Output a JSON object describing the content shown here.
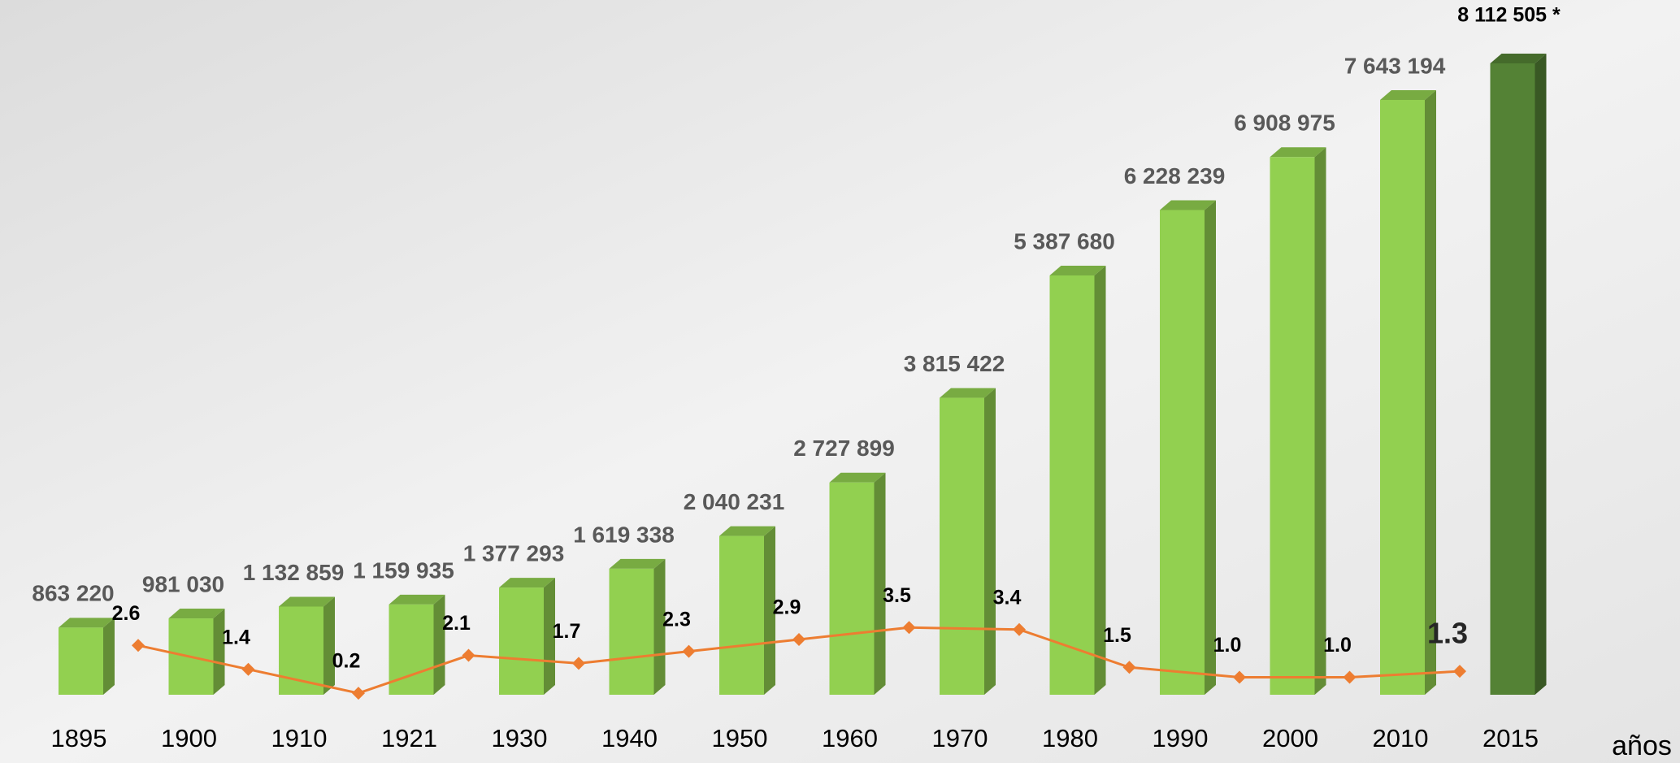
{
  "chart_data": {
    "type": "bar",
    "categories": [
      "1895",
      "1900",
      "1910",
      "1921",
      "1930",
      "1940",
      "1950",
      "1960",
      "1970",
      "1980",
      "1990",
      "2000",
      "2010",
      "2015"
    ],
    "values": [
      863220,
      981030,
      1132859,
      1159935,
      1377293,
      1619338,
      2040231,
      2727899,
      3815422,
      5387680,
      6228239,
      6908975,
      7643194,
      8112505
    ],
    "value_labels": [
      "863 220",
      "981 030",
      "1 132 859",
      "1 159 935",
      "1 377 293",
      "1 619 338",
      "2 040 231",
      "2 727 899",
      "3 815 422",
      "5 387 680",
      "6 228 239",
      "6 908 975",
      "7 643 194",
      "8 112 505 *"
    ],
    "colors": [
      "#92d050",
      "#92d050",
      "#92d050",
      "#92d050",
      "#92d050",
      "#92d050",
      "#92d050",
      "#92d050",
      "#92d050",
      "#92d050",
      "#92d050",
      "#92d050",
      "#92d050",
      "#548235"
    ],
    "x_label": "años",
    "rates": {
      "type": "line",
      "values": [
        2.6,
        1.4,
        0.2,
        2.1,
        1.7,
        2.3,
        2.9,
        3.5,
        3.4,
        1.5,
        1.0,
        1.0,
        1.3
      ],
      "value_labels": [
        "2.6",
        "1.4",
        "0.2",
        "2.1",
        "1.7",
        "2.3",
        "2.9",
        "3.5",
        "3.4",
        "1.5",
        "1.0",
        "1.0",
        "1.3"
      ],
      "color": "#ed7d31"
    }
  }
}
